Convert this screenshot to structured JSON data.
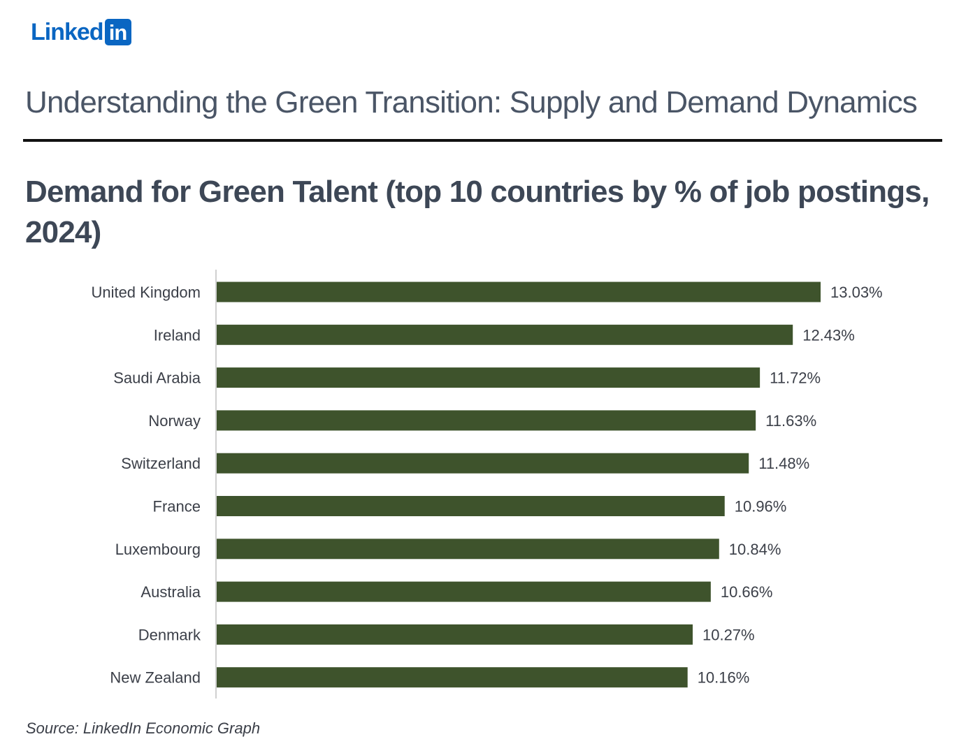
{
  "logo": {
    "text": "Linked",
    "box_text": "in"
  },
  "header": {
    "title": "Understanding the Green Transition: Supply and Demand Dynamics"
  },
  "colors": {
    "bar": "#3e532c",
    "axis": "#d0d0d0",
    "text": "#3b3f48",
    "brand": "#0a66c2"
  },
  "chart_data": {
    "type": "bar",
    "orientation": "horizontal",
    "title": "Demand for Green Talent (top 10 countries by % of job postings, 2024)",
    "xlabel": "",
    "ylabel": "",
    "categories": [
      "United Kingdom",
      "Ireland",
      "Saudi Arabia",
      "Norway",
      "Switzerland",
      "France",
      "Luxembourg",
      "Australia",
      "Denmark",
      "New Zealand"
    ],
    "values": [
      13.03,
      12.43,
      11.72,
      11.63,
      11.48,
      10.96,
      10.84,
      10.66,
      10.27,
      10.16
    ],
    "value_labels": [
      "13.03%",
      "12.43%",
      "11.72%",
      "11.63%",
      "11.48%",
      "10.96%",
      "10.84%",
      "10.66%",
      "10.27%",
      "10.16%"
    ],
    "xlim": [
      0,
      13.03
    ],
    "grid": false
  },
  "source": "Source: LinkedIn Economic Graph"
}
